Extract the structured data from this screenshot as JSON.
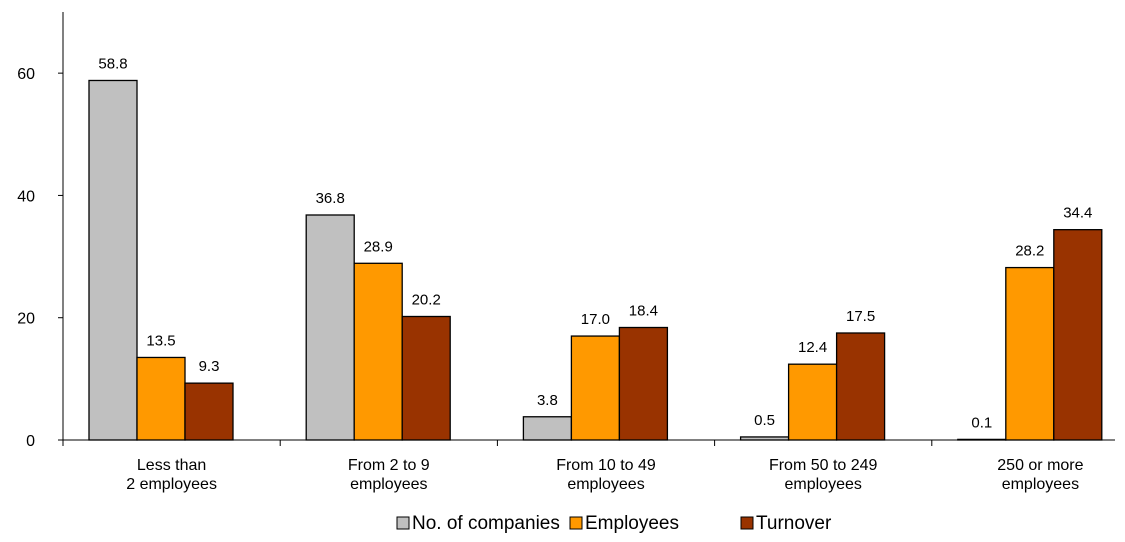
{
  "chart_data": {
    "type": "bar",
    "categories": [
      [
        "Less than",
        "2 employees"
      ],
      [
        "From 2 to 9",
        "employees"
      ],
      [
        "From 10 to 49",
        "employees"
      ],
      [
        "From 50 to 249",
        "employees"
      ],
      [
        "250 or more",
        "employees"
      ]
    ],
    "series": [
      {
        "name": "No. of companies",
        "color": "#c0c0c0",
        "values": [
          58.8,
          36.8,
          3.8,
          0.5,
          0.1
        ],
        "labels": [
          "58.8",
          "36.8",
          "3.8",
          "0.5",
          "0.1"
        ]
      },
      {
        "name": "Employees",
        "color": "#ff9900",
        "values": [
          13.5,
          28.9,
          17.0,
          12.4,
          28.2
        ],
        "labels": [
          "13.5",
          "28.9",
          "17.0",
          "12.4",
          "28.2"
        ]
      },
      {
        "name": "Turnover",
        "color": "#993300",
        "values": [
          9.3,
          20.2,
          18.4,
          17.5,
          34.4
        ],
        "labels": [
          "9.3",
          "20.2",
          "18.4",
          "17.5",
          "34.4"
        ]
      }
    ],
    "yticks": [
      "0",
      "20",
      "40",
      "60"
    ],
    "ylim": [
      0,
      70
    ],
    "grid": false,
    "legend": "bottom",
    "title": "",
    "xlabel": "",
    "ylabel": ""
  }
}
